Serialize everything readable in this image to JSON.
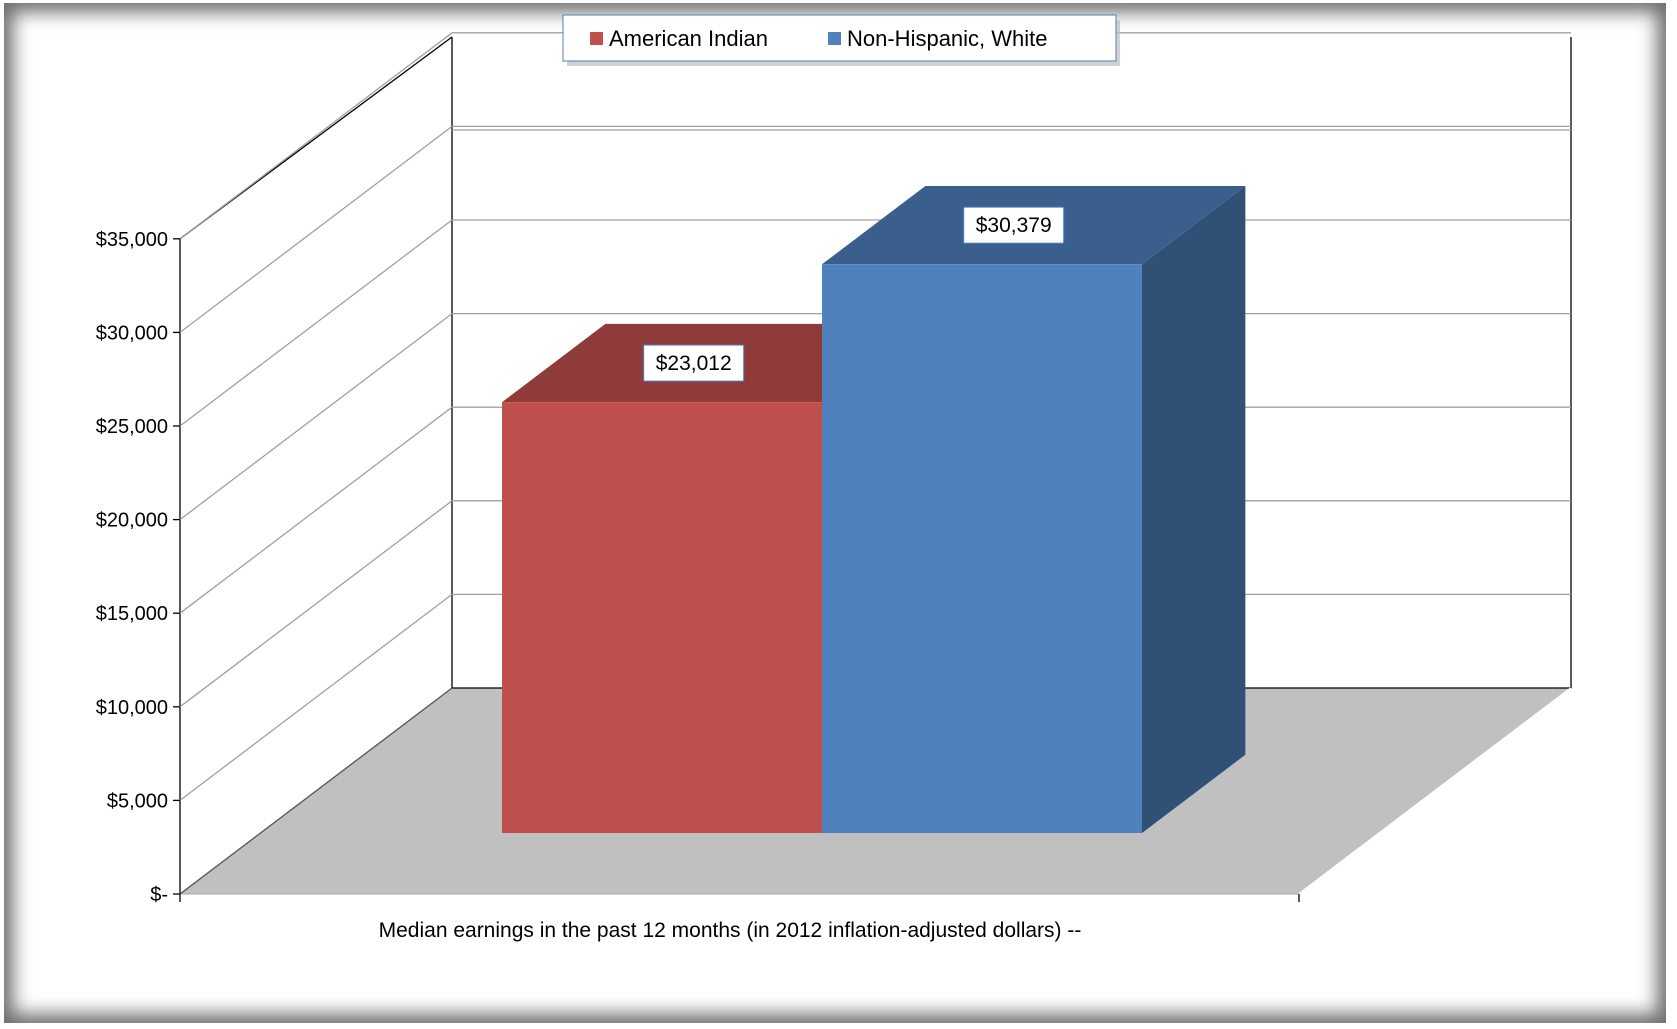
{
  "chart_data": {
    "type": "bar",
    "categories": [
      "Median earnings in the past 12 months (in 2012 inflation-adjusted dollars) --"
    ],
    "series": [
      {
        "name": "American Indian",
        "values": [
          23012
        ],
        "color": "#C0504D",
        "label": "$23,012"
      },
      {
        "name": "Non-Hispanic, White",
        "values": [
          30379
        ],
        "color": "#4F81BD",
        "label": "$30,379"
      }
    ],
    "ylim": [
      0,
      35000
    ],
    "yticks": [
      0,
      5000,
      10000,
      15000,
      20000,
      25000,
      30000,
      35000
    ],
    "ytick_labels": [
      "$-",
      "$5,000",
      "$10,000",
      "$15,000",
      "$20,000",
      "$25,000",
      "$30,000",
      "$35,000"
    ],
    "grid": true,
    "legend": "top-center",
    "style": "3d-column"
  }
}
